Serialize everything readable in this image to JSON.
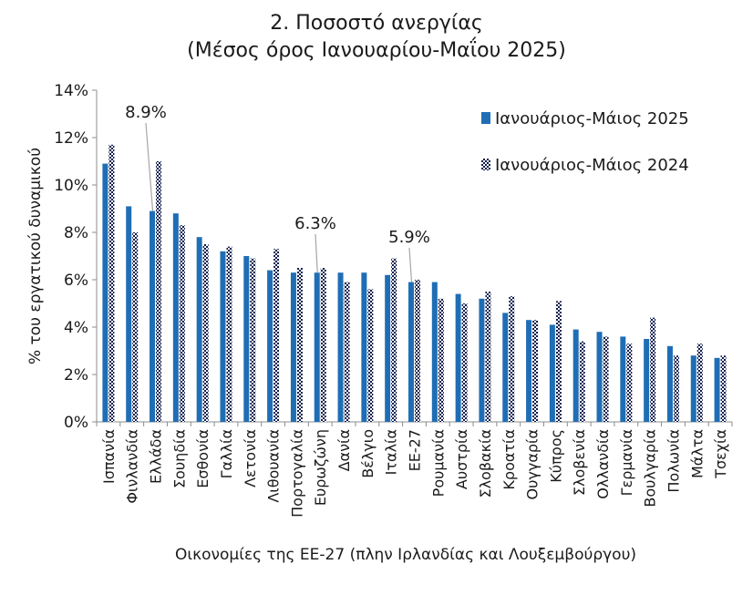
{
  "chart_data": {
    "type": "bar",
    "title": "2. Ποσοστό ανεργίας",
    "subtitle": "(Μέσος όρος Ιανουαρίου-Μαΐου 2025)",
    "xlabel": "Οικονομίες της ΕΕ-27 (πλην Ιρλανδίας και Λουξεμβούργου)",
    "ylabel": "% του εργατικού δυναμικού",
    "ylim": [
      0,
      14
    ],
    "yticks": [
      0,
      2,
      4,
      6,
      8,
      10,
      12,
      14
    ],
    "ytick_labels": [
      "0%",
      "2%",
      "4%",
      "6%",
      "8%",
      "10%",
      "12%",
      "14%"
    ],
    "grid": false,
    "legend_position": "top-right",
    "categories": [
      "Ισπανία",
      "Φινλανδία",
      "Ελλάδα",
      "Σουηδία",
      "Εσθονία",
      "Γαλλία",
      "Λετονία",
      "Λιθουανία",
      "Πορτογαλία",
      "Ευρωζώνη",
      "Δανία",
      "Βέλγιο",
      "Ιταλία",
      "ΕΕ-27",
      "Ρουμανία",
      "Αυστρία",
      "Σλοβακία",
      "Κροατία",
      "Ουγγαρία",
      "Κύπρος",
      "Σλοβενία",
      "Ολλανδία",
      "Γερμανία",
      "Βουλγαρία",
      "Πολωνία",
      "Μάλτα",
      "Τσεχία"
    ],
    "series": [
      {
        "name": "Ιανουάριος-Μάιος 2025",
        "color": "#1f6eb5",
        "pattern": "solid",
        "values": [
          10.9,
          9.1,
          8.9,
          8.8,
          7.8,
          7.2,
          7.0,
          6.4,
          6.3,
          6.3,
          6.3,
          6.3,
          6.2,
          5.9,
          5.9,
          5.4,
          5.2,
          4.6,
          4.3,
          4.1,
          3.9,
          3.8,
          3.6,
          3.5,
          3.2,
          2.8,
          2.7
        ]
      },
      {
        "name": "Ιανουάριος-Μάιος 2024",
        "color": "#0d1b4c",
        "pattern": "checkered",
        "values": [
          11.7,
          8.0,
          11.0,
          8.3,
          7.5,
          7.4,
          6.9,
          7.3,
          6.5,
          6.5,
          5.9,
          5.6,
          6.9,
          6.0,
          5.2,
          5.0,
          5.5,
          5.3,
          4.3,
          5.1,
          3.4,
          3.6,
          3.3,
          4.4,
          2.8,
          3.3,
          2.8
        ]
      }
    ],
    "annotations": [
      {
        "text": "8.9%",
        "category": "Ελλάδα"
      },
      {
        "text": "6.3%",
        "category": "Ευρωζώνη"
      },
      {
        "text": "5.9%",
        "category": "ΕΕ-27"
      }
    ]
  }
}
